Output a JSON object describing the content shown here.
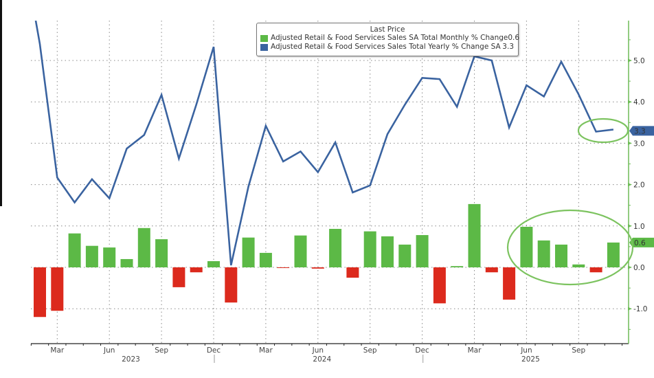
{
  "chart_data": {
    "type": "bar+line",
    "legend_title": "Last Price",
    "series": [
      {
        "name": "Adjusted Retail & Food Services Sales SA Total Monthly % Change",
        "last": "0.6",
        "type": "bar",
        "color_pos": "#5cb946",
        "color_neg": "#dc2a1d",
        "values": [
          -1.2,
          -1.05,
          0.82,
          0.52,
          0.48,
          0.2,
          0.95,
          0.68,
          -0.48,
          -0.12,
          0.15,
          -0.85,
          0.72,
          0.35,
          -0.01,
          0.77,
          -0.03,
          0.93,
          -0.25,
          0.87,
          0.75,
          0.55,
          0.78,
          -0.87,
          0.03,
          1.53,
          -0.12,
          -0.78,
          0.98,
          0.65,
          0.55,
          0.07,
          -0.12,
          0.6
        ]
      },
      {
        "name": "Adjusted Retail & Food Services Sales Total Yearly % Change SA",
        "last": "3.3",
        "type": "line",
        "color": "#3a63a0",
        "values": [
          5.4,
          2.17,
          1.57,
          2.13,
          1.67,
          2.87,
          3.2,
          4.17,
          2.63,
          3.93,
          5.33,
          0.05,
          1.95,
          3.42,
          2.56,
          2.8,
          2.3,
          3.02,
          1.81,
          1.98,
          3.22,
          3.93,
          4.58,
          4.55,
          3.88,
          5.1,
          5.0,
          3.38,
          4.4,
          4.13,
          4.97,
          4.18,
          3.28,
          3.33
        ]
      }
    ],
    "x": [
      "Feb 2023",
      "Mar 2023",
      "Apr 2023",
      "May 2023",
      "Jun 2023",
      "Jul 2023",
      "Aug 2023",
      "Sep 2023",
      "Oct 2023",
      "Nov 2023",
      "Dec 2023",
      "Jan 2024",
      "Feb 2024",
      "Mar 2024",
      "Apr 2024",
      "May 2024",
      "Jun 2024",
      "Jul 2024",
      "Aug 2024",
      "Sep 2024",
      "Oct 2024",
      "Nov 2024",
      "Dec 2024",
      "Jan 2025",
      "Feb 2025",
      "Mar 2025",
      "Apr 2025",
      "May 2025",
      "Jun 2025",
      "Jul 2025",
      "Aug 2025",
      "Sep 2025",
      "Oct 2025",
      "Nov 2025"
    ],
    "x_month_ticks": [
      {
        "label": "Mar",
        "index": 1
      },
      {
        "label": "Jun",
        "index": 4
      },
      {
        "label": "Sep",
        "index": 7
      },
      {
        "label": "Dec",
        "index": 10
      },
      {
        "label": "Mar",
        "index": 13
      },
      {
        "label": "Jun",
        "index": 16
      },
      {
        "label": "Sep",
        "index": 19
      },
      {
        "label": "Dec",
        "index": 22
      },
      {
        "label": "Mar",
        "index": 25
      },
      {
        "label": "Jun",
        "index": 28
      },
      {
        "label": "Sep",
        "index": 31
      }
    ],
    "x_year_labels": [
      {
        "label": "2023",
        "index": 5
      },
      {
        "label": "2024",
        "index": 16
      },
      {
        "label": "2025",
        "index": 28
      }
    ],
    "y_ticks": [
      "5.0",
      "4.0",
      "3.0",
      "2.0",
      "1.0",
      "0.0",
      "-1.0"
    ],
    "y_tick_values": [
      5,
      4,
      3,
      2,
      1,
      0,
      -1
    ],
    "ylim": [
      -1.8,
      5.95
    ],
    "axis_color": "#6dbb56",
    "grid": true,
    "annotations": [
      "ellipse around last two yearly values",
      "ellipse around Jun–Nov 2025 monthly bars"
    ]
  }
}
